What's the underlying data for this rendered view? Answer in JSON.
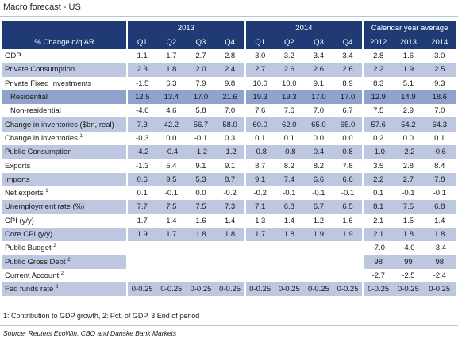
{
  "title": "Macro forecast - US",
  "header": {
    "row_label": "% Change q/q AR",
    "groups": [
      "2013",
      "2014",
      "Calendar year average"
    ],
    "cols": [
      "Q1",
      "Q2",
      "Q3",
      "Q4",
      "Q1",
      "Q2",
      "Q3",
      "Q4",
      "2012",
      "2013",
      "2014"
    ]
  },
  "rows": [
    {
      "label": "GDP",
      "values": [
        "1.1",
        "1.7",
        "2.7",
        "2.8",
        "3.0",
        "3.2",
        "3.4",
        "3.4",
        "2.8",
        "1.6",
        "3.0"
      ]
    },
    {
      "label": "Private Consumption",
      "values": [
        "2.3",
        "1.8",
        "2.0",
        "2.4",
        "2.7",
        "2.6",
        "2.6",
        "2.6",
        "2.2",
        "1.9",
        "2.5"
      ]
    },
    {
      "label": "Private Fixed Investments",
      "values": [
        "-1.5",
        "6.3",
        "7.9",
        "9.8",
        "10.0",
        "10.0",
        "9.1",
        "8.9",
        "8.3",
        "5.1",
        "9.3"
      ]
    },
    {
      "label": "Residential",
      "values": [
        "12.5",
        "13.4",
        "17.0",
        "21.6",
        "19.3",
        "19.3",
        "17.0",
        "17.0",
        "12.9",
        "14.9",
        "18.6"
      ]
    },
    {
      "label": "Non-residential",
      "values": [
        "-4.6",
        "4.6",
        "5.8",
        "7.0",
        "7.6",
        "7.6",
        "7.0",
        "6.7",
        "7.5",
        "2.9",
        "7.0"
      ]
    },
    {
      "label": "Change in inventories ($bn, real)",
      "values": [
        "7.3",
        "42.2",
        "56.7",
        "58.0",
        "60.0",
        "62.0",
        "65.0",
        "65.0",
        "57.6",
        "54.2",
        "64.3"
      ]
    },
    {
      "label": "Change in inventories",
      "sup": "1",
      "values": [
        "-0.3",
        "0.0",
        "-0.1",
        "0.3",
        "0.1",
        "0.1",
        "0.0",
        "0.0",
        "0.2",
        "0.0",
        "0.1"
      ]
    },
    {
      "label": "Public Consumption",
      "values": [
        "-4.2",
        "-0.4",
        "-1.2",
        "-1.2",
        "-0.8",
        "-0.8",
        "0.4",
        "0.8",
        "-1.0",
        "-2.2",
        "-0.6"
      ]
    },
    {
      "label": "Exports",
      "values": [
        "-1.3",
        "5.4",
        "9.1",
        "9.1",
        "8.7",
        "8.2",
        "8.2",
        "7.8",
        "3.5",
        "2.8",
        "8.4"
      ]
    },
    {
      "label": "Imports",
      "values": [
        "0.6",
        "9.5",
        "5.3",
        "8.7",
        "9.1",
        "7.4",
        "6.6",
        "6.6",
        "2.2",
        "2.7",
        "7.8"
      ]
    },
    {
      "label": "Net exports",
      "sup": "1",
      "values": [
        "0.1",
        "-0.1",
        "0.0",
        "-0.2",
        "-0.2",
        "-0.1",
        "-0.1",
        "-0.1",
        "0.1",
        "-0.1",
        "-0.1"
      ]
    },
    {
      "label": "Unemployment rate (%)",
      "values": [
        "7.7",
        "7.5",
        "7.5",
        "7.3",
        "7.1",
        "6.8",
        "6.7",
        "6.5",
        "8.1",
        "7.5",
        "6.8"
      ]
    },
    {
      "label": "CPI (y/y)",
      "values": [
        "1.7",
        "1.4",
        "1.6",
        "1.4",
        "1.3",
        "1.4",
        "1.2",
        "1.6",
        "2.1",
        "1.5",
        "1.4"
      ]
    },
    {
      "label": "Core CPI (y/y)",
      "values": [
        "1.9",
        "1.7",
        "1.8",
        "1.8",
        "1.7",
        "1.8",
        "1.9",
        "1.9",
        "2.1",
        "1.8",
        "1.8"
      ]
    },
    {
      "label": "Public Budget",
      "sup": "2",
      "values": [
        "",
        "",
        "",
        "",
        "",
        "",
        "",
        "",
        "-7.0",
        "-4.0",
        "-3.4"
      ]
    },
    {
      "label": "Public Gross Debt",
      "sup": "2",
      "values": [
        "",
        "",
        "",
        "",
        "",
        "",
        "",
        "",
        "98",
        "99",
        "98"
      ]
    },
    {
      "label": "Current Account",
      "sup": "2",
      "values": [
        "",
        "",
        "",
        "",
        "",
        "",
        "",
        "",
        "-2.7",
        "-2.5",
        "-2.4"
      ]
    },
    {
      "label": "Fed funds rate",
      "sup": "3",
      "values": [
        "0-0.25",
        "0-0.25",
        "0-0.25",
        "0-0.25",
        "0-0.25",
        "0-0.25",
        "0-0.25",
        "0-0.25",
        "0-0.25",
        "0-0.25",
        "0-0.25"
      ]
    }
  ],
  "footnote": "1: Contribution to GDP growth, 2: Pct. of GDP, 3:End of period",
  "source": "Source: Reuters EcoWin, CBO and Danske Bank Markets"
}
